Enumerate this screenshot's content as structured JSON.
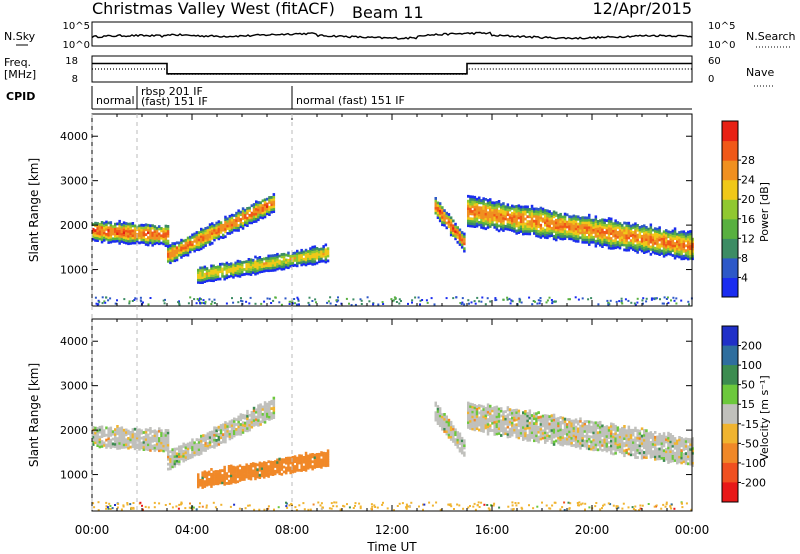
{
  "header": {
    "station": "Christmas Valley West (fitACF)",
    "beam": "Beam 11",
    "date": "12/Apr/2015"
  },
  "nsky": {
    "label": "N.Sky",
    "right_label": "N.Search",
    "tick_top_left": "10^5",
    "tick_bottom_left": "10^0",
    "tick_top_right": "10^5",
    "tick_bottom_right": "10^0"
  },
  "freq": {
    "label_line1": "Freq.",
    "label_line2": "[MHz]",
    "right_label": "Nave",
    "ticks_left": [
      "18",
      "8"
    ],
    "ticks_right": [
      "60",
      "0"
    ],
    "ylim_left": [
      8,
      18
    ],
    "ylim_right": [
      0,
      60
    ]
  },
  "cpid": {
    "label": "CPID",
    "segments": [
      {
        "start_hour": 0.0,
        "end_hour": 1.8,
        "text": "normal",
        "text2": ""
      },
      {
        "start_hour": 1.8,
        "end_hour": 8.0,
        "text": "rbsp 201 IF",
        "text2": "(fast) 151 IF"
      },
      {
        "start_hour": 8.0,
        "end_hour": 24.0,
        "text": "normal (fast) 151 IF",
        "text2": ""
      }
    ]
  },
  "chart_data": [
    {
      "type": "heatmap",
      "panel": "power",
      "ylabel": "Slant Range [km]",
      "xlim": [
        0,
        24
      ],
      "ylim": [
        180,
        4500
      ],
      "yticks": [
        1000,
        2000,
        3000,
        4000
      ],
      "ytick_labels": [
        "1000",
        "2000",
        "3000",
        "4000"
      ],
      "colorbar": {
        "label": "Power [dB]",
        "tick_labels": [
          "4",
          "8",
          "12",
          "16",
          "20",
          "24",
          "28"
        ],
        "range": [
          0,
          32
        ],
        "colors": [
          "#1a2cf0",
          "#2d58c8",
          "#3c8c64",
          "#58b040",
          "#90c830",
          "#f0c818",
          "#f09020",
          "#f05818",
          "#e82014"
        ]
      },
      "echo_regions": [
        {
          "name": "region-a",
          "start_hour": 0.0,
          "end_hour": 3.0,
          "center_start_km": 1850,
          "center_end_km": 1750,
          "half_width_km": 220,
          "peak_db": 27
        },
        {
          "name": "region-b",
          "start_hour": 3.0,
          "end_hour": 7.3,
          "center_start_km": 1300,
          "center_end_km": 2500,
          "half_width_km": 200,
          "peak_db": 26
        },
        {
          "name": "region-c",
          "start_hour": 4.2,
          "end_hour": 9.4,
          "center_start_km": 850,
          "center_end_km": 1350,
          "half_width_km": 170,
          "peak_db": 20
        },
        {
          "name": "region-d",
          "start_hour": 13.7,
          "end_hour": 14.9,
          "center_start_km": 2400,
          "center_end_km": 1550,
          "half_width_km": 200,
          "peak_db": 27
        },
        {
          "name": "region-e",
          "start_hour": 15.0,
          "end_hour": 24.0,
          "center_start_km": 2300,
          "center_end_km": 1500,
          "half_width_km": 300,
          "peak_db": 25
        }
      ]
    },
    {
      "type": "heatmap",
      "panel": "velocity",
      "ylabel": "Slant Range [km]",
      "xlabel": "Time UT",
      "xlim": [
        0,
        24
      ],
      "ylim": [
        180,
        4500
      ],
      "yticks": [
        1000,
        2000,
        3000,
        4000
      ],
      "ytick_labels": [
        "1000",
        "2000",
        "3000",
        "4000"
      ],
      "xtick_labels": [
        "00:00",
        "04:00",
        "08:00",
        "12:00",
        "16:00",
        "20:00",
        "00:00"
      ],
      "xticks_hours": [
        0,
        4,
        8,
        12,
        16,
        20,
        24
      ],
      "colorbar": {
        "label": "Velocity [m s⁻¹]",
        "tick_labels": [
          "200",
          "100",
          "50",
          "15",
          "-15",
          "-50",
          "-100",
          "-200"
        ],
        "colors": [
          "#2030c8",
          "#2f6e9e",
          "#3c8c50",
          "#6cc83c",
          "#c0c0bc",
          "#f0b430",
          "#f08828",
          "#f05020",
          "#e81818"
        ]
      },
      "echo_regions": [
        {
          "name": "region-a",
          "start_hour": 0.0,
          "end_hour": 3.0,
          "center_start_km": 1850,
          "center_end_km": 1750,
          "half_width_km": 220,
          "velocity": 0
        },
        {
          "name": "region-b",
          "start_hour": 3.0,
          "end_hour": 7.3,
          "center_start_km": 1300,
          "center_end_km": 2500,
          "half_width_km": 200,
          "velocity": 0
        },
        {
          "name": "region-c",
          "start_hour": 4.2,
          "end_hour": 9.4,
          "center_start_km": 850,
          "center_end_km": 1350,
          "half_width_km": 170,
          "velocity": -45
        },
        {
          "name": "region-d",
          "start_hour": 13.7,
          "end_hour": 14.9,
          "center_start_km": 2400,
          "center_end_km": 1550,
          "half_width_km": 200,
          "velocity": 0
        },
        {
          "name": "region-e",
          "start_hour": 15.0,
          "end_hour": 24.0,
          "center_start_km": 2300,
          "center_end_km": 1500,
          "half_width_km": 300,
          "velocity": 0
        }
      ]
    }
  ]
}
